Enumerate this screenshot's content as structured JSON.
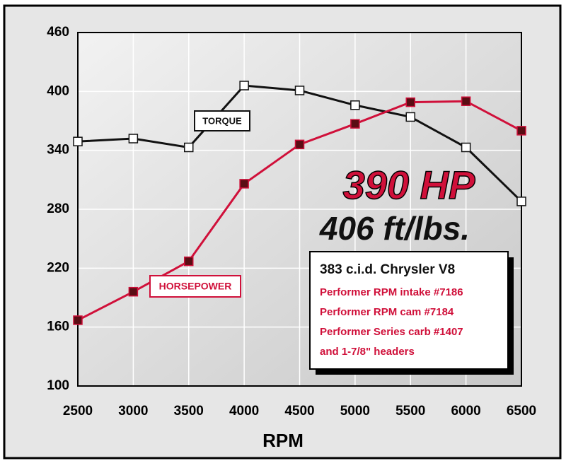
{
  "chart_data": {
    "type": "line",
    "xlabel": "RPM",
    "x": [
      2500,
      3000,
      3500,
      4000,
      4500,
      5000,
      5500,
      6000,
      6500
    ],
    "xlim": [
      2500,
      6500
    ],
    "xticks": [
      2500,
      3000,
      3500,
      4000,
      4500,
      5000,
      5500,
      6000,
      6500
    ],
    "ylim": [
      100,
      460
    ],
    "yticks": [
      100,
      160,
      220,
      280,
      340,
      400,
      460
    ],
    "grid": true,
    "series": [
      {
        "name": "TORQUE",
        "color": "#111111",
        "marker_color": "#ffffff",
        "values": [
          349,
          352,
          343,
          406,
          401,
          386,
          374,
          343,
          288
        ]
      },
      {
        "name": "HORSEPOWER",
        "color": "#d0103a",
        "marker_color": "#5a0d14",
        "values": [
          167,
          196,
          227,
          306,
          346,
          367,
          389,
          390,
          360
        ]
      }
    ],
    "annotations": [
      "390 HP",
      "406 ft/lbs."
    ],
    "info_box": {
      "title": "383 c.i.d. Chrysler V8",
      "lines": [
        "Performer RPM intake #7186",
        "Performer RPM cam #7184",
        "Performer Series carb #1407",
        "and 1-7/8\" headers"
      ]
    }
  }
}
